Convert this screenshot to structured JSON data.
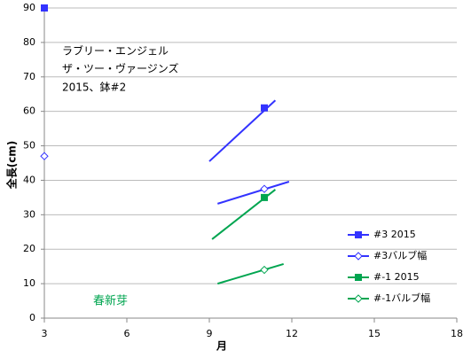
{
  "chart_data": {
    "type": "scatter",
    "xlabel": "月",
    "ylabel": "全長(cm)",
    "xlim": [
      3,
      18
    ],
    "xticks": [
      3,
      6,
      9,
      12,
      15,
      18
    ],
    "ylim": [
      0,
      90
    ],
    "yticks": [
      0,
      10,
      20,
      30,
      40,
      50,
      60,
      70,
      80,
      90
    ],
    "grid": true,
    "legend": "lower right",
    "annotations": [
      "ラブリー・エンジェル",
      "ザ・ツー・ヴァージンズ",
      "2015、鉢#2",
      "春新芽"
    ],
    "series": [
      {
        "name": "#3 2015",
        "color": "#3333ff",
        "marker": "square",
        "x": [
          3,
          11
        ],
        "values": [
          90,
          61
        ],
        "trend": {
          "x": [
            9,
            11.4
          ],
          "values": [
            45.5,
            63.2
          ]
        }
      },
      {
        "name": "#3バルブ幅",
        "color": "#3333ff",
        "marker": "diamond",
        "x": [
          3,
          11
        ],
        "values": [
          47,
          37.5
        ],
        "trend": {
          "x": [
            9.3,
            11.9
          ],
          "values": [
            33.2,
            39.6
          ]
        }
      },
      {
        "name": "#-1 2015",
        "color": "#00a550",
        "marker": "square",
        "x": [
          11
        ],
        "values": [
          35
        ],
        "trend": {
          "x": [
            9.1,
            11.4
          ],
          "values": [
            22.9,
            37.3
          ]
        }
      },
      {
        "name": "#-1バルブ幅",
        "color": "#00a550",
        "marker": "diamond",
        "x": [
          11
        ],
        "values": [
          14
        ],
        "trend": {
          "x": [
            9.3,
            11.7
          ],
          "values": [
            10,
            15.7
          ]
        }
      }
    ]
  }
}
